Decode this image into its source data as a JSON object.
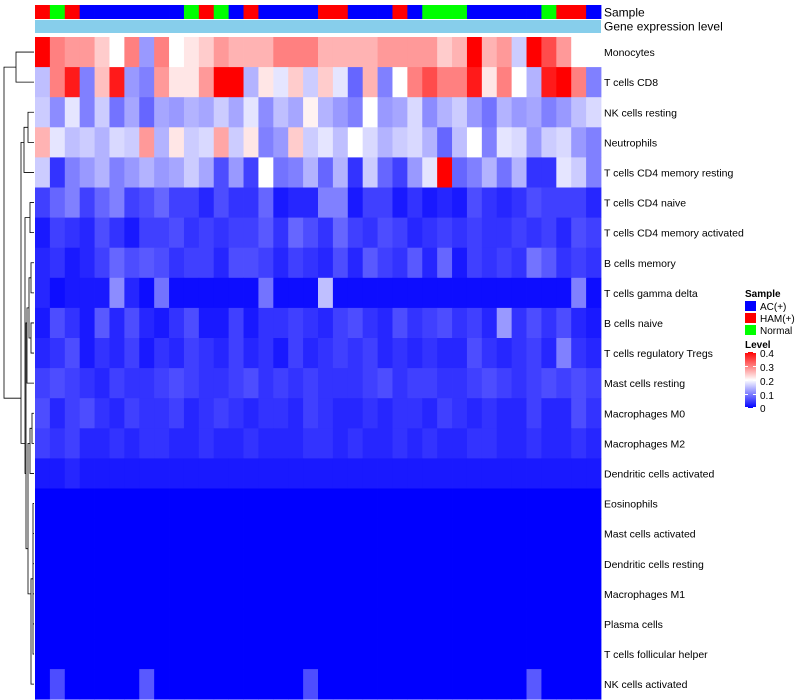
{
  "chart_data": {
    "type": "heatmap",
    "title": "",
    "annotation_labels": [
      "Sample",
      "Gene expression level"
    ],
    "rows": [
      "Monocytes",
      "T cells CD8",
      "NK cells resting",
      "Neutrophils",
      "T cells CD4 memory resting",
      "T cells CD4 naive",
      "T cells CD4 memory activated",
      "B cells memory",
      "T cells gamma delta",
      "B cells naive",
      "T cells regulatory  Tregs",
      "Mast cells resting",
      "Macrophages M0",
      "Macrophages M2",
      "Dendritic cells activated",
      "Eosinophils",
      "Mast cells activated",
      "Dendritic cells resting",
      "Macrophages M1",
      "Plasma cells",
      "T cells follicular helper",
      "NK cells activated"
    ],
    "n_columns": 38,
    "sample_groups": [
      "HAM(+)",
      "Normal",
      "HAM(+)",
      "AC(+)",
      "AC(+)",
      "AC(+)",
      "AC(+)",
      "AC(+)",
      "AC(+)",
      "AC(+)",
      "Normal",
      "HAM(+)",
      "Normal",
      "AC(+)",
      "HAM(+)",
      "AC(+)",
      "AC(+)",
      "AC(+)",
      "AC(+)",
      "HAM(+)",
      "HAM(+)",
      "AC(+)",
      "AC(+)",
      "AC(+)",
      "HAM(+)",
      "AC(+)",
      "Normal",
      "Normal",
      "Normal",
      "AC(+)",
      "AC(+)",
      "AC(+)",
      "AC(+)",
      "AC(+)",
      "Normal",
      "HAM(+)",
      "HAM(+)",
      "AC(+)"
    ],
    "values": [
      [
        0.4,
        0.3,
        0.28,
        0.28,
        0.24,
        0.2,
        0.3,
        0.12,
        0.3,
        0.2,
        0.22,
        0.24,
        0.28,
        0.26,
        0.26,
        0.26,
        0.3,
        0.3,
        0.3,
        0.26,
        0.26,
        0.26,
        0.26,
        0.28,
        0.28,
        0.28,
        0.28,
        0.24,
        0.26,
        0.4,
        0.26,
        0.28,
        0.16,
        0.4,
        0.34,
        0.28,
        0.2,
        0.2
      ],
      [
        0.15,
        0.3,
        0.38,
        0.1,
        0.25,
        0.38,
        0.12,
        0.1,
        0.28,
        0.22,
        0.22,
        0.28,
        0.4,
        0.4,
        0.14,
        0.22,
        0.18,
        0.24,
        0.16,
        0.24,
        0.18,
        0.08,
        0.26,
        0.1,
        0.2,
        0.3,
        0.34,
        0.3,
        0.3,
        0.38,
        0.22,
        0.3,
        0.2,
        0.14,
        0.38,
        0.4,
        0.3,
        0.1
      ],
      [
        0.16,
        0.11,
        0.18,
        0.1,
        0.16,
        0.09,
        0.13,
        0.08,
        0.13,
        0.12,
        0.14,
        0.13,
        0.16,
        0.13,
        0.18,
        0.11,
        0.15,
        0.13,
        0.21,
        0.14,
        0.12,
        0.1,
        0.2,
        0.12,
        0.13,
        0.17,
        0.11,
        0.14,
        0.16,
        0.12,
        0.09,
        0.14,
        0.12,
        0.13,
        0.1,
        0.12,
        0.15,
        0.17
      ],
      [
        0.26,
        0.18,
        0.15,
        0.16,
        0.14,
        0.17,
        0.16,
        0.28,
        0.14,
        0.22,
        0.16,
        0.17,
        0.27,
        0.16,
        0.22,
        0.1,
        0.12,
        0.24,
        0.16,
        0.18,
        0.15,
        0.2,
        0.17,
        0.14,
        0.16,
        0.17,
        0.14,
        0.08,
        0.15,
        0.2,
        0.1,
        0.18,
        0.17,
        0.12,
        0.16,
        0.17,
        0.12,
        0.1
      ],
      [
        0.16,
        0.04,
        0.1,
        0.12,
        0.14,
        0.1,
        0.12,
        0.14,
        0.12,
        0.13,
        0.16,
        0.13,
        0.06,
        0.12,
        0.05,
        0.2,
        0.09,
        0.1,
        0.14,
        0.08,
        0.14,
        0.04,
        0.16,
        0.08,
        0.05,
        0.12,
        0.18,
        0.4,
        0.08,
        0.1,
        0.14,
        0.09,
        0.14,
        0.04,
        0.04,
        0.18,
        0.16,
        0.1
      ],
      [
        0.05,
        0.08,
        0.1,
        0.05,
        0.08,
        0.1,
        0.05,
        0.06,
        0.08,
        0.05,
        0.05,
        0.03,
        0.06,
        0.04,
        0.04,
        0.08,
        0.02,
        0.03,
        0.03,
        0.1,
        0.1,
        0.02,
        0.05,
        0.05,
        0.02,
        0.04,
        0.02,
        0.03,
        0.02,
        0.06,
        0.04,
        0.03,
        0.04,
        0.06,
        0.05,
        0.05,
        0.05,
        0.03
      ],
      [
        0.02,
        0.05,
        0.04,
        0.03,
        0.06,
        0.04,
        0.02,
        0.05,
        0.05,
        0.06,
        0.04,
        0.05,
        0.04,
        0.05,
        0.05,
        0.07,
        0.04,
        0.08,
        0.06,
        0.04,
        0.08,
        0.05,
        0.04,
        0.06,
        0.05,
        0.03,
        0.04,
        0.05,
        0.04,
        0.05,
        0.04,
        0.04,
        0.05,
        0.04,
        0.05,
        0.03,
        0.06,
        0.05
      ],
      [
        0.03,
        0.04,
        0.02,
        0.03,
        0.05,
        0.08,
        0.06,
        0.07,
        0.06,
        0.04,
        0.05,
        0.05,
        0.03,
        0.06,
        0.06,
        0.05,
        0.03,
        0.05,
        0.04,
        0.03,
        0.06,
        0.03,
        0.07,
        0.05,
        0.04,
        0.07,
        0.03,
        0.08,
        0.02,
        0.05,
        0.04,
        0.05,
        0.04,
        0.09,
        0.07,
        0.04,
        0.05,
        0.04
      ],
      [
        0.03,
        0.01,
        0.02,
        0.02,
        0.02,
        0.11,
        0.03,
        0.01,
        0.09,
        0.01,
        0.01,
        0.01,
        0.01,
        0.01,
        0.01,
        0.09,
        0.01,
        0.01,
        0.01,
        0.15,
        0.01,
        0.01,
        0.01,
        0.01,
        0.01,
        0.01,
        0.01,
        0.01,
        0.01,
        0.01,
        0.01,
        0.01,
        0.01,
        0.01,
        0.01,
        0.01,
        0.1,
        0.01
      ],
      [
        0.02,
        0.06,
        0.04,
        0.02,
        0.07,
        0.03,
        0.06,
        0.03,
        0.02,
        0.04,
        0.06,
        0.02,
        0.02,
        0.05,
        0.02,
        0.04,
        0.04,
        0.05,
        0.04,
        0.03,
        0.05,
        0.06,
        0.04,
        0.03,
        0.06,
        0.04,
        0.05,
        0.06,
        0.04,
        0.05,
        0.03,
        0.12,
        0.04,
        0.06,
        0.04,
        0.06,
        0.03,
        0.02
      ],
      [
        0.03,
        0.04,
        0.06,
        0.02,
        0.04,
        0.03,
        0.05,
        0.02,
        0.04,
        0.03,
        0.05,
        0.04,
        0.03,
        0.05,
        0.03,
        0.04,
        0.02,
        0.05,
        0.03,
        0.04,
        0.05,
        0.04,
        0.05,
        0.03,
        0.04,
        0.03,
        0.04,
        0.03,
        0.03,
        0.06,
        0.04,
        0.03,
        0.04,
        0.05,
        0.03,
        0.1,
        0.04,
        0.03
      ],
      [
        0.05,
        0.06,
        0.05,
        0.04,
        0.03,
        0.05,
        0.04,
        0.04,
        0.05,
        0.06,
        0.05,
        0.04,
        0.04,
        0.05,
        0.06,
        0.04,
        0.05,
        0.04,
        0.05,
        0.04,
        0.04,
        0.04,
        0.05,
        0.06,
        0.04,
        0.05,
        0.05,
        0.04,
        0.04,
        0.05,
        0.06,
        0.05,
        0.04,
        0.05,
        0.06,
        0.05,
        0.06,
        0.05
      ],
      [
        0.06,
        0.03,
        0.05,
        0.06,
        0.04,
        0.03,
        0.05,
        0.04,
        0.04,
        0.05,
        0.03,
        0.04,
        0.05,
        0.04,
        0.03,
        0.04,
        0.04,
        0.03,
        0.05,
        0.04,
        0.03,
        0.03,
        0.04,
        0.03,
        0.04,
        0.04,
        0.03,
        0.05,
        0.04,
        0.03,
        0.04,
        0.03,
        0.03,
        0.05,
        0.03,
        0.03,
        0.06,
        0.04
      ],
      [
        0.05,
        0.04,
        0.05,
        0.03,
        0.03,
        0.04,
        0.03,
        0.04,
        0.04,
        0.03,
        0.03,
        0.04,
        0.03,
        0.03,
        0.04,
        0.03,
        0.03,
        0.03,
        0.04,
        0.04,
        0.03,
        0.04,
        0.03,
        0.03,
        0.04,
        0.03,
        0.04,
        0.03,
        0.03,
        0.04,
        0.04,
        0.03,
        0.03,
        0.04,
        0.03,
        0.03,
        0.04,
        0.03
      ],
      [
        0.02,
        0.02,
        0.03,
        0.02,
        0.02,
        0.02,
        0.02,
        0.02,
        0.02,
        0.02,
        0.02,
        0.02,
        0.02,
        0.02,
        0.02,
        0.02,
        0.02,
        0.02,
        0.02,
        0.02,
        0.02,
        0.02,
        0.02,
        0.02,
        0.02,
        0.02,
        0.02,
        0.02,
        0.02,
        0.02,
        0.02,
        0.02,
        0.02,
        0.02,
        0.02,
        0.02,
        0.02,
        0.02
      ],
      [
        0.0,
        0.0,
        0.0,
        0.0,
        0.0,
        0.0,
        0.0,
        0.0,
        0.0,
        0.0,
        0.0,
        0.0,
        0.0,
        0.0,
        0.0,
        0.0,
        0.0,
        0.0,
        0.0,
        0.0,
        0.0,
        0.0,
        0.0,
        0.0,
        0.0,
        0.0,
        0.0,
        0.0,
        0.0,
        0.0,
        0.0,
        0.0,
        0.0,
        0.0,
        0.0,
        0.0,
        0.0,
        0.0
      ],
      [
        0.0,
        0.0,
        0.0,
        0.0,
        0.0,
        0.0,
        0.0,
        0.0,
        0.0,
        0.0,
        0.0,
        0.0,
        0.0,
        0.0,
        0.0,
        0.0,
        0.0,
        0.0,
        0.0,
        0.0,
        0.0,
        0.0,
        0.0,
        0.0,
        0.0,
        0.0,
        0.0,
        0.0,
        0.0,
        0.0,
        0.0,
        0.0,
        0.0,
        0.0,
        0.0,
        0.0,
        0.0,
        0.0
      ],
      [
        0.0,
        0.0,
        0.0,
        0.0,
        0.0,
        0.0,
        0.0,
        0.0,
        0.0,
        0.0,
        0.0,
        0.0,
        0.0,
        0.0,
        0.0,
        0.0,
        0.0,
        0.0,
        0.0,
        0.0,
        0.0,
        0.0,
        0.0,
        0.0,
        0.0,
        0.0,
        0.0,
        0.0,
        0.0,
        0.0,
        0.0,
        0.0,
        0.0,
        0.0,
        0.0,
        0.0,
        0.0,
        0.0
      ],
      [
        0.0,
        0.0,
        0.0,
        0.0,
        0.0,
        0.0,
        0.0,
        0.0,
        0.0,
        0.0,
        0.0,
        0.0,
        0.0,
        0.0,
        0.0,
        0.0,
        0.0,
        0.0,
        0.0,
        0.0,
        0.0,
        0.0,
        0.0,
        0.0,
        0.0,
        0.0,
        0.0,
        0.0,
        0.0,
        0.0,
        0.0,
        0.0,
        0.0,
        0.0,
        0.0,
        0.0,
        0.0,
        0.0
      ],
      [
        0.0,
        0.0,
        0.0,
        0.0,
        0.0,
        0.0,
        0.0,
        0.0,
        0.0,
        0.0,
        0.0,
        0.0,
        0.0,
        0.0,
        0.0,
        0.0,
        0.0,
        0.0,
        0.0,
        0.0,
        0.0,
        0.0,
        0.0,
        0.0,
        0.0,
        0.0,
        0.0,
        0.0,
        0.0,
        0.0,
        0.0,
        0.0,
        0.0,
        0.0,
        0.0,
        0.0,
        0.0,
        0.0
      ],
      [
        0.0,
        0.0,
        0.0,
        0.0,
        0.0,
        0.0,
        0.0,
        0.0,
        0.0,
        0.0,
        0.0,
        0.0,
        0.0,
        0.0,
        0.0,
        0.0,
        0.0,
        0.0,
        0.0,
        0.0,
        0.0,
        0.0,
        0.0,
        0.0,
        0.0,
        0.0,
        0.0,
        0.0,
        0.0,
        0.0,
        0.0,
        0.0,
        0.0,
        0.0,
        0.0,
        0.0,
        0.0,
        0.0
      ],
      [
        0.0,
        0.06,
        0.0,
        0.0,
        0.0,
        0.0,
        0.0,
        0.07,
        0.0,
        0.0,
        0.0,
        0.0,
        0.0,
        0.0,
        0.0,
        0.0,
        0.0,
        0.0,
        0.06,
        0.0,
        0.0,
        0.0,
        0.0,
        0.0,
        0.0,
        0.0,
        0.0,
        0.0,
        0.0,
        0.0,
        0.0,
        0.0,
        0.0,
        0.07,
        0.0,
        0.0,
        0.0,
        0.0
      ]
    ],
    "color_scale": {
      "min": 0,
      "mid": 0.2,
      "max": 0.4,
      "low_color": "#0000ff",
      "mid_color": "#ffffff",
      "high_color": "#ff0000"
    },
    "expression_bar_color": "#87ceeb",
    "legend": {
      "sample_title": "Sample",
      "sample_items": [
        {
          "label": "AC(+)",
          "color": "#0000ff"
        },
        {
          "label": "HAM(+)",
          "color": "#ff0000"
        },
        {
          "label": "Normal",
          "color": "#00ff00"
        }
      ],
      "level_title": "Level",
      "level_ticks": [
        "0",
        "0.1",
        "0.2",
        "0.3",
        "0.4"
      ]
    }
  }
}
